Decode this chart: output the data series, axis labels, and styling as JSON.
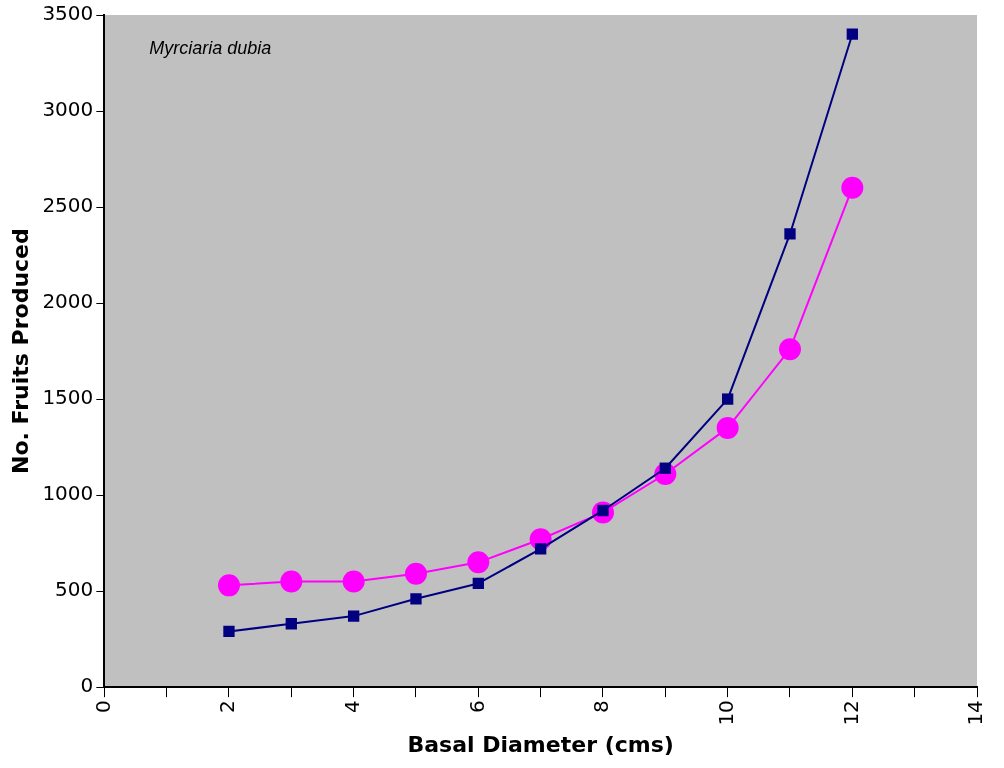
{
  "chart_data": {
    "type": "line",
    "xlabel": "Basal Diameter (cms)",
    "ylabel": "No. Fruits Produced",
    "annotations": [
      "Myrciaria dubia"
    ],
    "x": [
      2,
      3,
      4,
      5,
      6,
      7,
      8,
      9,
      10,
      11,
      12
    ],
    "series": [
      {
        "color": "#000080",
        "marker": "square",
        "values": [
          290,
          330,
          370,
          460,
          540,
          720,
          920,
          1140,
          1500,
          2360,
          3400
        ]
      },
      {
        "color": "#ff00ff",
        "marker": "circle",
        "values": [
          530,
          550,
          550,
          590,
          650,
          770,
          910,
          1110,
          1350,
          1760,
          2600
        ]
      }
    ],
    "xlim": [
      0,
      14
    ],
    "xticks": [
      0,
      {
        "value": 1,
        "label": null
      },
      2,
      {
        "value": 3,
        "label": null
      },
      4,
      {
        "value": 5,
        "label": null
      },
      6,
      {
        "value": 7,
        "label": null
      },
      8,
      {
        "value": 9,
        "label": null
      },
      10,
      {
        "value": 11,
        "label": null
      },
      12,
      {
        "value": 13,
        "label": null
      },
      14
    ],
    "ylim": [
      0,
      3500
    ],
    "yticks": [
      0,
      500,
      1000,
      1500,
      2000,
      2500,
      3000,
      3500
    ],
    "grid": false,
    "legend": false
  }
}
